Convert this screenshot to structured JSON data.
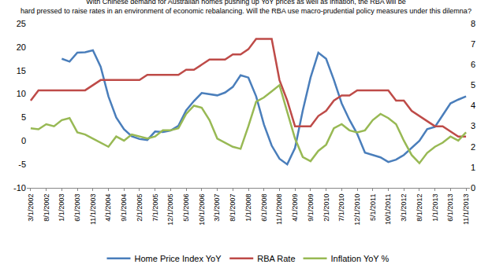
{
  "chart_data": {
    "type": "line",
    "title": [
      "With Chinese demand for Australian homes pushing up YoY prices as well as inflation, the RBA will be",
      "hard pressed to raise rates in an environment of economic rebalancing. Will the RBA use macro-prudential policy measures under this dilemna?"
    ],
    "categories": [
      "3/1/2002",
      null,
      "8/1/2002",
      null,
      "1/1/2003",
      null,
      "6/1/2003",
      null,
      "11/1/2003",
      null,
      "4/1/2004",
      null,
      "9/1/2004",
      null,
      "2/1/2005",
      null,
      "7/1/2005",
      null,
      "12/1/2005",
      null,
      "5/1/2006",
      null,
      "10/1/2006",
      null,
      "3/1/2007",
      null,
      "8/1/2007",
      null,
      "1/1/2008",
      null,
      "6/1/2008",
      null,
      "11/1/2008",
      null,
      "4/1/2009",
      null,
      "9/1/2009",
      null,
      "2/1/2010",
      null,
      "7/1/2010",
      null,
      "12/1/2010",
      null,
      "5/1/2011",
      null,
      "10/1/2011",
      null,
      "3/1/2012",
      null,
      "8/1/2012",
      null,
      "1/1/2013",
      null,
      "6/1/2013",
      null,
      "11/1/2013"
    ],
    "series": [
      {
        "name": "Home Price Index YoY",
        "color": "#4a7ebb",
        "axis": "y",
        "values": [
          null,
          null,
          null,
          null,
          17.5,
          16.9,
          18.8,
          18.9,
          19.3,
          15.8,
          9.5,
          5,
          2.5,
          1.0,
          0.4,
          0.2,
          2.0,
          1.9,
          2.2,
          3.2,
          6.5,
          8.5,
          10.2,
          9.9,
          9.7,
          10.3,
          11.5,
          14.0,
          13.5,
          9.5,
          3.5,
          -1,
          -3.8,
          -5.0,
          -1.5,
          6.5,
          13.5,
          18.8,
          17.5,
          13,
          8,
          4.5,
          1.5,
          -2.5,
          -3.0,
          -3.5,
          -4.5,
          -4.0,
          -3.0,
          -1.5,
          0,
          2.5,
          3.0,
          5.5,
          8.0,
          8.8,
          9.5
        ]
      },
      {
        "name": "RBA Rate",
        "color": "#be4b48",
        "axis": "y2",
        "values": [
          4.25,
          4.75,
          4.75,
          4.75,
          4.75,
          4.75,
          4.75,
          4.75,
          5.0,
          5.25,
          5.25,
          5.25,
          5.25,
          5.25,
          5.25,
          5.5,
          5.5,
          5.5,
          5.5,
          5.5,
          5.75,
          5.75,
          6.0,
          6.25,
          6.25,
          6.25,
          6.5,
          6.5,
          6.75,
          7.25,
          7.25,
          7.25,
          5.25,
          4.25,
          3.0,
          3.0,
          3.0,
          3.5,
          3.75,
          4.25,
          4.5,
          4.5,
          4.75,
          4.75,
          4.75,
          4.75,
          4.75,
          4.25,
          4.25,
          3.75,
          3.5,
          3.25,
          3.0,
          3.0,
          2.75,
          2.5,
          2.5
        ]
      },
      {
        "name": "Inflation YoY %",
        "color": "#98b954",
        "axis": "y2",
        "values": [
          2.9,
          2.85,
          3.1,
          3.0,
          3.3,
          3.4,
          2.7,
          2.6,
          2.4,
          2.2,
          2.0,
          2.5,
          2.3,
          2.6,
          2.5,
          2.4,
          2.5,
          2.8,
          2.8,
          2.9,
          3.6,
          4.0,
          3.9,
          3.3,
          2.4,
          2.2,
          2.0,
          1.9,
          3.0,
          4.2,
          4.4,
          4.7,
          5.0,
          3.7,
          2.4,
          1.5,
          1.3,
          1.8,
          2.1,
          2.9,
          3.1,
          2.8,
          2.7,
          2.8,
          3.3,
          3.6,
          3.4,
          3.1,
          2.3,
          1.6,
          1.2,
          1.7,
          2.0,
          2.2,
          2.5,
          2.3,
          2.7
        ]
      }
    ],
    "ylim": [
      -10,
      25
    ],
    "yticks": [
      -10,
      -5,
      0,
      5,
      10,
      15,
      20,
      25
    ],
    "y2lim": [
      0,
      8
    ],
    "y2ticks": [
      0,
      1,
      2,
      3,
      4,
      5,
      6,
      7,
      8
    ],
    "grid": false,
    "legend": "bottom"
  }
}
